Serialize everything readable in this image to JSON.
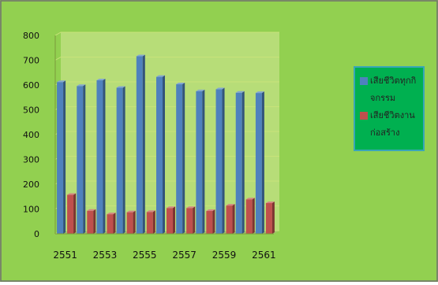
{
  "colors": {
    "background": "#92d050",
    "frame_border": "#6f6f6f",
    "plot_fill": "#b7dd78",
    "grid": "#c8e27a",
    "legend_fill": "#00b050",
    "legend_border": "#3aa6b8",
    "series_blue": "#4f81bd",
    "series_red": "#c0504d"
  },
  "chart_data": {
    "type": "bar",
    "title": "",
    "xlabel": "",
    "ylabel": "",
    "ylim": [
      0,
      800
    ],
    "yticks": [
      "0",
      "100",
      "200",
      "300",
      "400",
      "500",
      "600",
      "700",
      "800"
    ],
    "grid": true,
    "legend_position": "right",
    "categories": [
      "2551",
      "2552",
      "2553",
      "2554",
      "2555",
      "2556",
      "2557",
      "2558",
      "2559",
      "2560",
      "2561"
    ],
    "xtick_labels": [
      "2551",
      "2553",
      "2555",
      "2557",
      "2559",
      "2561"
    ],
    "series": [
      {
        "name": "เสียชีวิตทุกกิจกรรม",
        "color": "#4f81bd",
        "values": [
          612,
          596,
          619,
          589,
          716,
          633,
          603,
          575,
          583,
          569,
          568
        ]
      },
      {
        "name": "เสียชีวิตงานก่อสร้าง",
        "color": "#c0504d",
        "values": [
          157,
          93,
          79,
          87,
          88,
          104,
          104,
          92,
          114,
          139,
          124
        ]
      }
    ]
  }
}
